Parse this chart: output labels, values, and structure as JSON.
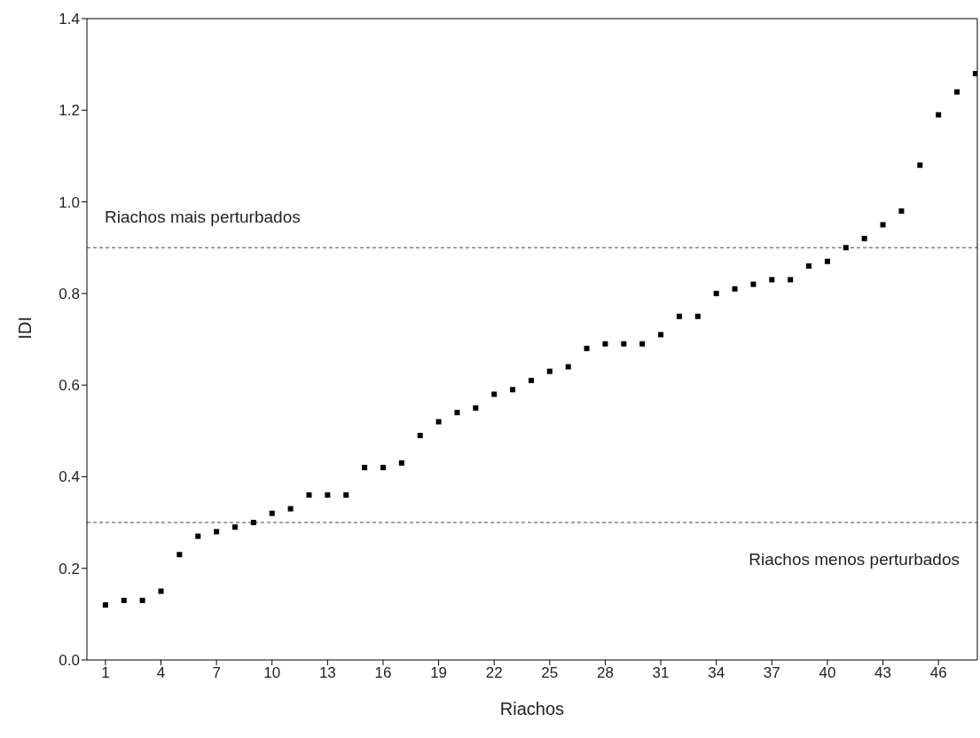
{
  "chart_data": {
    "type": "scatter",
    "xlabel": "Riachos",
    "ylabel": "IDI",
    "x": [
      1,
      2,
      3,
      4,
      5,
      6,
      7,
      8,
      9,
      10,
      11,
      12,
      13,
      14,
      15,
      16,
      17,
      18,
      19,
      20,
      21,
      22,
      23,
      24,
      25,
      26,
      27,
      28,
      29,
      30,
      31,
      32,
      33,
      34,
      35,
      36,
      37,
      38,
      39,
      40,
      41,
      42,
      43,
      44,
      45,
      46,
      47,
      48
    ],
    "values": [
      0.12,
      0.13,
      0.13,
      0.15,
      0.23,
      0.27,
      0.28,
      0.29,
      0.3,
      0.32,
      0.33,
      0.36,
      0.36,
      0.36,
      0.42,
      0.42,
      0.43,
      0.49,
      0.52,
      0.54,
      0.55,
      0.58,
      0.59,
      0.61,
      0.63,
      0.64,
      0.68,
      0.69,
      0.69,
      0.69,
      0.71,
      0.75,
      0.75,
      0.8,
      0.81,
      0.82,
      0.83,
      0.83,
      0.86,
      0.87,
      0.9,
      0.92,
      0.95,
      0.98,
      1.08,
      1.19,
      1.24,
      1.28
    ],
    "color": "#000000",
    "marker": "square",
    "xlim": [
      0,
      48.1
    ],
    "xticks": [
      1,
      4,
      7,
      10,
      13,
      16,
      19,
      22,
      25,
      28,
      31,
      34,
      37,
      40,
      43,
      46
    ],
    "ylim": [
      0,
      1.4
    ],
    "yticks": [
      {
        "value": 0,
        "label": "0.0"
      },
      0.2,
      0.4,
      0.6,
      0.8,
      {
        "value": 1,
        "label": "1.0"
      },
      1.2,
      1.4
    ],
    "ref_lines": [
      {
        "axis": "y",
        "value": 0.9,
        "label": "Riachos mais perturbados",
        "line_style": "dashed",
        "color": "#444444"
      },
      {
        "axis": "y",
        "value": 0.3,
        "label": "Riachos menos perturbados",
        "line_style": "dashed",
        "color": "#444444"
      }
    ],
    "grid": false
  }
}
